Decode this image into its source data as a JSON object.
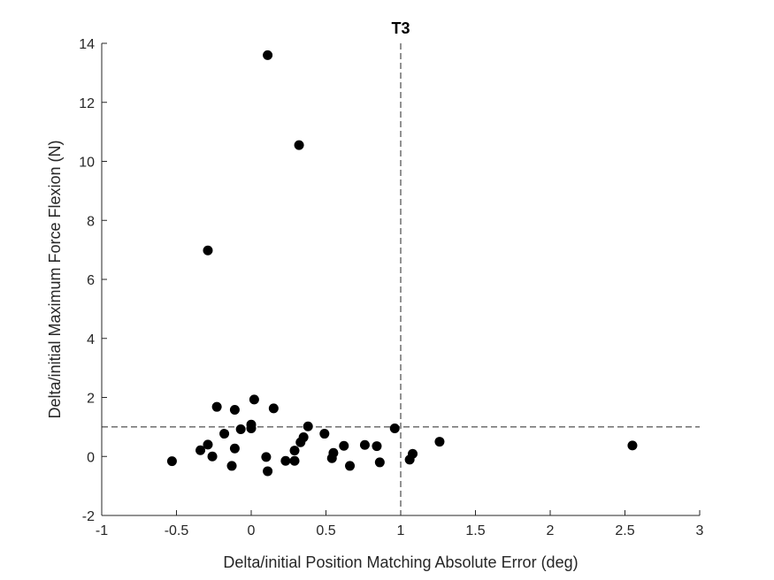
{
  "chart_data": {
    "type": "scatter",
    "title": "T3",
    "xlabel": "Delta/initial Position Matching Absolute Error (deg)",
    "ylabel": "Delta/initial Maximum Force Flexion (N)",
    "xlim": [
      -1,
      3
    ],
    "ylim": [
      -2,
      14
    ],
    "xticks": [
      -1,
      -0.5,
      0,
      0.5,
      1,
      1.5,
      2,
      2.5,
      3
    ],
    "yticks": [
      -2,
      0,
      2,
      4,
      6,
      8,
      10,
      12,
      14
    ],
    "xtick_labels": [
      "-1",
      "-0.5",
      "0",
      "0.5",
      "1",
      "1.5",
      "2",
      "2.5",
      "3"
    ],
    "ytick_labels": [
      "-2",
      "0",
      "2",
      "4",
      "6",
      "8",
      "10",
      "12",
      "14"
    ],
    "reference_lines": {
      "x": 1,
      "y": 1
    },
    "grid": false,
    "color": "#000000",
    "points": [
      {
        "x": 0.11,
        "y": 13.6
      },
      {
        "x": 0.32,
        "y": 10.55
      },
      {
        "x": -0.29,
        "y": 6.98
      },
      {
        "x": 0.02,
        "y": 1.93
      },
      {
        "x": -0.23,
        "y": 1.68
      },
      {
        "x": -0.11,
        "y": 1.58
      },
      {
        "x": 0.15,
        "y": 1.63
      },
      {
        "x": 0.0,
        "y": 1.08
      },
      {
        "x": 0.38,
        "y": 1.02
      },
      {
        "x": -0.07,
        "y": 0.92
      },
      {
        "x": 0.0,
        "y": 0.95
      },
      {
        "x": 0.96,
        "y": 0.95
      },
      {
        "x": -0.18,
        "y": 0.77
      },
      {
        "x": 0.49,
        "y": 0.77
      },
      {
        "x": 0.35,
        "y": 0.65
      },
      {
        "x": 0.33,
        "y": 0.48
      },
      {
        "x": 1.26,
        "y": 0.5
      },
      {
        "x": -0.29,
        "y": 0.4
      },
      {
        "x": 0.62,
        "y": 0.36
      },
      {
        "x": 0.76,
        "y": 0.39
      },
      {
        "x": 0.84,
        "y": 0.35
      },
      {
        "x": 2.55,
        "y": 0.37
      },
      {
        "x": -0.11,
        "y": 0.27
      },
      {
        "x": -0.34,
        "y": 0.21
      },
      {
        "x": 0.29,
        "y": 0.2
      },
      {
        "x": 0.55,
        "y": 0.12
      },
      {
        "x": 1.08,
        "y": 0.09
      },
      {
        "x": -0.26,
        "y": 0.0
      },
      {
        "x": 0.1,
        "y": -0.02
      },
      {
        "x": 0.54,
        "y": -0.06
      },
      {
        "x": 1.06,
        "y": -0.11
      },
      {
        "x": -0.53,
        "y": -0.16
      },
      {
        "x": 0.23,
        "y": -0.15
      },
      {
        "x": 0.29,
        "y": -0.15
      },
      {
        "x": 0.86,
        "y": -0.2
      },
      {
        "x": -0.13,
        "y": -0.32
      },
      {
        "x": 0.66,
        "y": -0.32
      },
      {
        "x": 0.11,
        "y": -0.5
      }
    ]
  }
}
